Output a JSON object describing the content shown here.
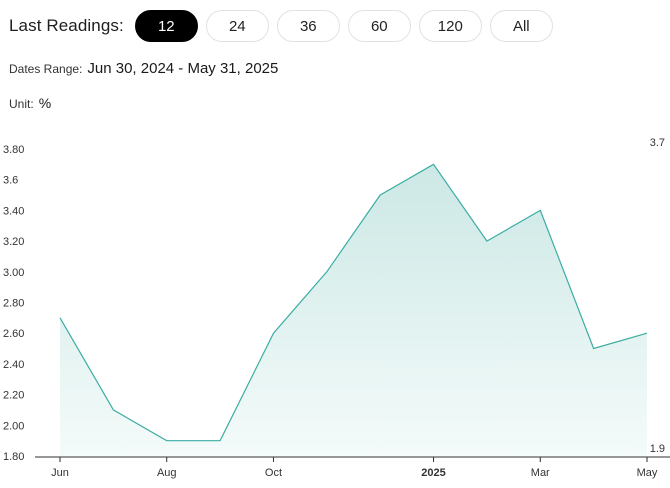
{
  "filter": {
    "label": "Last Readings:",
    "options": [
      {
        "label": "12",
        "active": true
      },
      {
        "label": "24",
        "active": false
      },
      {
        "label": "36",
        "active": false
      },
      {
        "label": "60",
        "active": false
      },
      {
        "label": "120",
        "active": false
      },
      {
        "label": "All",
        "active": false
      }
    ]
  },
  "dates_range": {
    "label": "Dates Range:",
    "value": "Jun 30, 2024 - May 31, 2025"
  },
  "unit": {
    "label": "Unit:",
    "value": "%"
  },
  "colors": {
    "line": "#3aada3",
    "fill_top": "#cce8e5",
    "fill_bottom": "#f4fbfa",
    "axis": "#333333"
  },
  "chart_data": {
    "type": "area",
    "x": [
      "2024-06",
      "2024-07",
      "2024-08",
      "2024-09",
      "2024-10",
      "2024-11",
      "2024-12",
      "2025-01",
      "2025-02",
      "2025-03",
      "2025-04",
      "2025-05"
    ],
    "values": [
      2.7,
      2.1,
      1.9,
      1.9,
      2.6,
      3.0,
      3.5,
      3.7,
      3.2,
      3.4,
      2.5,
      2.6
    ],
    "ylim": [
      1.8,
      3.8
    ],
    "yticks": [
      "1.80",
      "2.00",
      "2.20",
      "2.40",
      "2.60",
      "2.80",
      "3.00",
      "3.20",
      "3.40",
      "3.6",
      "3.80"
    ],
    "xticks": [
      {
        "index": 0,
        "label": "Jun",
        "bold": false
      },
      {
        "index": 2,
        "label": "Aug",
        "bold": false
      },
      {
        "index": 4,
        "label": "Oct",
        "bold": false
      },
      {
        "index": 7,
        "label": "2025",
        "bold": true
      },
      {
        "index": 9,
        "label": "Mar",
        "bold": false
      },
      {
        "index": 11,
        "label": "May",
        "bold": false
      }
    ],
    "max_label": "3.7",
    "min_label": "1.9",
    "grid": false,
    "title": "",
    "xlabel": "",
    "ylabel": ""
  }
}
